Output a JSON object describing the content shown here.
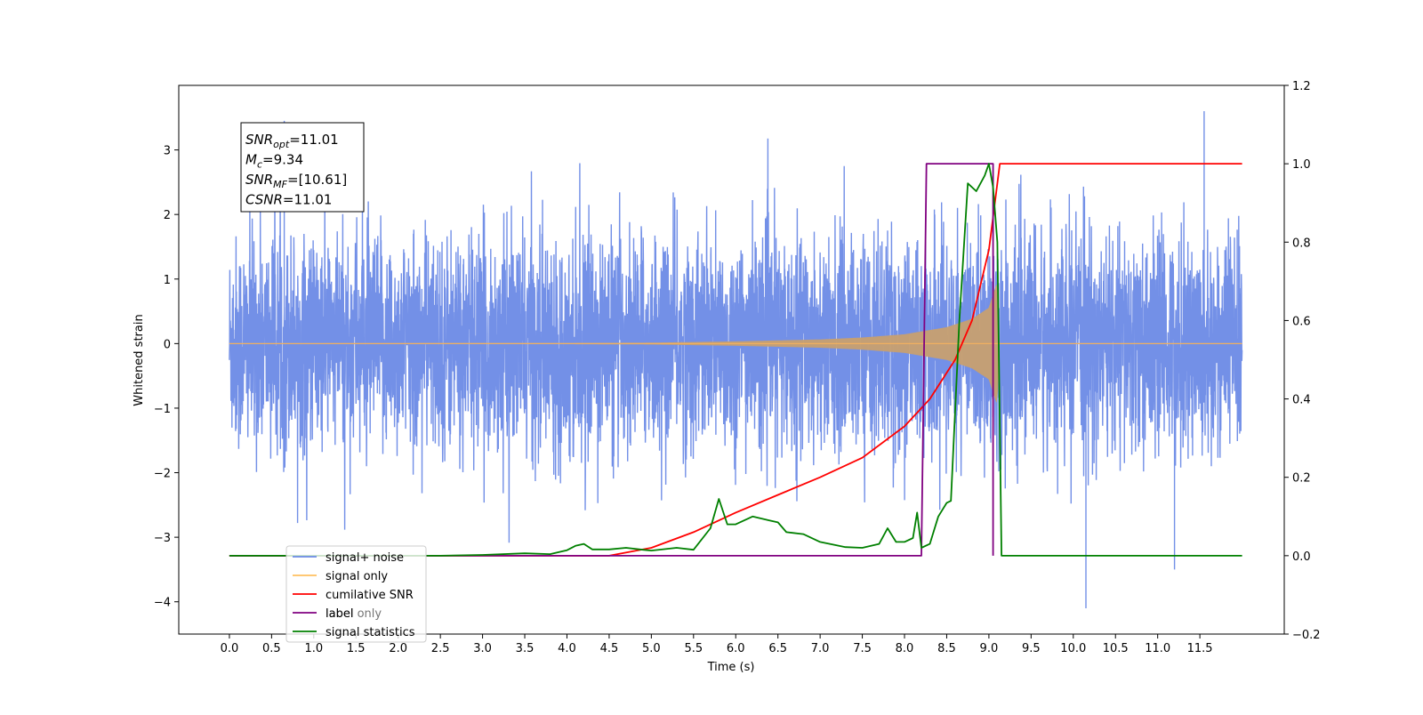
{
  "chart_data": {
    "type": "line",
    "xlabel": "Time (s)",
    "ylabel": "Whitened strain",
    "xlim": [
      -0.6,
      12.5
    ],
    "ylim_left": [
      -4.5,
      4.0
    ],
    "ylim_right": [
      -0.2,
      1.2
    ],
    "x_ticks": [
      "0.0",
      "0.5",
      "1.0",
      "1.5",
      "2.0",
      "2.5",
      "3.0",
      "3.5",
      "4.0",
      "4.5",
      "5.0",
      "5.5",
      "6.0",
      "6.5",
      "7.0",
      "7.5",
      "8.0",
      "8.5",
      "9.0",
      "9.5",
      "10.0",
      "10.5",
      "11.0",
      "11.5"
    ],
    "y_left_ticks": [
      "3",
      "2",
      "1",
      "0",
      "−1",
      "−2",
      "−3",
      "−4"
    ],
    "y_right_ticks": [
      "1.2",
      "1.0",
      "0.8",
      "0.6",
      "0.4",
      "0.2",
      "0.0",
      "−0.2"
    ],
    "annotation": {
      "lines": [
        {
          "main": "SNR",
          "sub": "opt",
          "value": "=11.01"
        },
        {
          "main": "M",
          "sub": "c",
          "value": "=9.34"
        },
        {
          "main": "SNR",
          "sub": "MF",
          "value": "=[10.61]"
        },
        {
          "main": "CSNR",
          "sub": "",
          "value": "=11.01"
        }
      ]
    },
    "legend": {
      "location": "lower-left",
      "entries": [
        "signal+ noise",
        "signal only",
        "cumilative SNR",
        "label",
        "signal statistics"
      ],
      "hidden_text": "label only"
    },
    "series": [
      {
        "name": "signal+ noise",
        "axis": "left",
        "color": "#6b8ae6",
        "description": "white noise plus chirp, amplitude about ±2.4 with spikes to ±3.5",
        "x_range": [
          0.0,
          12.0
        ],
        "notable_peaks": [
          [
            0.65,
            3.45
          ],
          [
            11.55,
            3.6
          ],
          [
            10.15,
            -4.1
          ],
          [
            11.2,
            -3.5
          ]
        ]
      },
      {
        "name": "signal only",
        "axis": "left",
        "color": "#c8a070",
        "description": "chirp growing in amplitude until merger at about 9.1 s",
        "envelope": {
          "x": [
            0.0,
            4.0,
            5.0,
            6.0,
            7.0,
            7.5,
            8.0,
            8.5,
            8.8,
            9.0,
            9.1,
            9.12
          ],
          "amp": [
            0.0,
            0.005,
            0.01,
            0.03,
            0.06,
            0.09,
            0.14,
            0.25,
            0.38,
            0.55,
            0.95,
            0.0
          ]
        }
      },
      {
        "name": "cumilative SNR",
        "axis": "right",
        "color": "#ff0000",
        "x": [
          0.0,
          4.5,
          5.0,
          5.5,
          6.0,
          6.5,
          7.0,
          7.5,
          8.0,
          8.3,
          8.6,
          8.8,
          9.0,
          9.1,
          9.13,
          9.5,
          12.0
        ],
        "y": [
          0.0,
          0.0,
          0.02,
          0.06,
          0.11,
          0.155,
          0.2,
          0.25,
          0.33,
          0.4,
          0.5,
          0.6,
          0.78,
          0.95,
          1.0,
          1.0,
          1.0
        ]
      },
      {
        "name": "label",
        "axis": "right",
        "color": "#800080",
        "x": [
          0.0,
          8.2,
          8.26,
          9.05,
          9.05
        ],
        "y": [
          0.0,
          0.0,
          1.0,
          1.0,
          0.0
        ]
      },
      {
        "name": "signal statistics",
        "axis": "right",
        "color": "#008000",
        "x": [
          0.0,
          2.5,
          3.0,
          3.5,
          3.8,
          4.0,
          4.1,
          4.2,
          4.3,
          4.5,
          4.7,
          4.9,
          5.0,
          5.3,
          5.5,
          5.7,
          5.8,
          5.9,
          6.0,
          6.1,
          6.2,
          6.3,
          6.4,
          6.5,
          6.6,
          6.8,
          7.0,
          7.3,
          7.5,
          7.7,
          7.8,
          7.9,
          8.0,
          8.1,
          8.15,
          8.2,
          8.3,
          8.4,
          8.5,
          8.55,
          8.65,
          8.75,
          8.85,
          8.95,
          9.0,
          9.05,
          9.1,
          9.15,
          9.2,
          12.0
        ],
        "y": [
          0.0,
          0.0,
          0.002,
          0.006,
          0.004,
          0.014,
          0.025,
          0.03,
          0.016,
          0.016,
          0.02,
          0.015,
          0.013,
          0.02,
          0.015,
          0.07,
          0.145,
          0.08,
          0.08,
          0.09,
          0.1,
          0.095,
          0.09,
          0.085,
          0.06,
          0.055,
          0.035,
          0.022,
          0.02,
          0.03,
          0.07,
          0.035,
          0.035,
          0.045,
          0.11,
          0.02,
          0.03,
          0.1,
          0.135,
          0.14,
          0.6,
          0.95,
          0.93,
          0.97,
          1.0,
          0.94,
          0.8,
          0.0,
          0.0,
          0.0
        ]
      }
    ]
  }
}
